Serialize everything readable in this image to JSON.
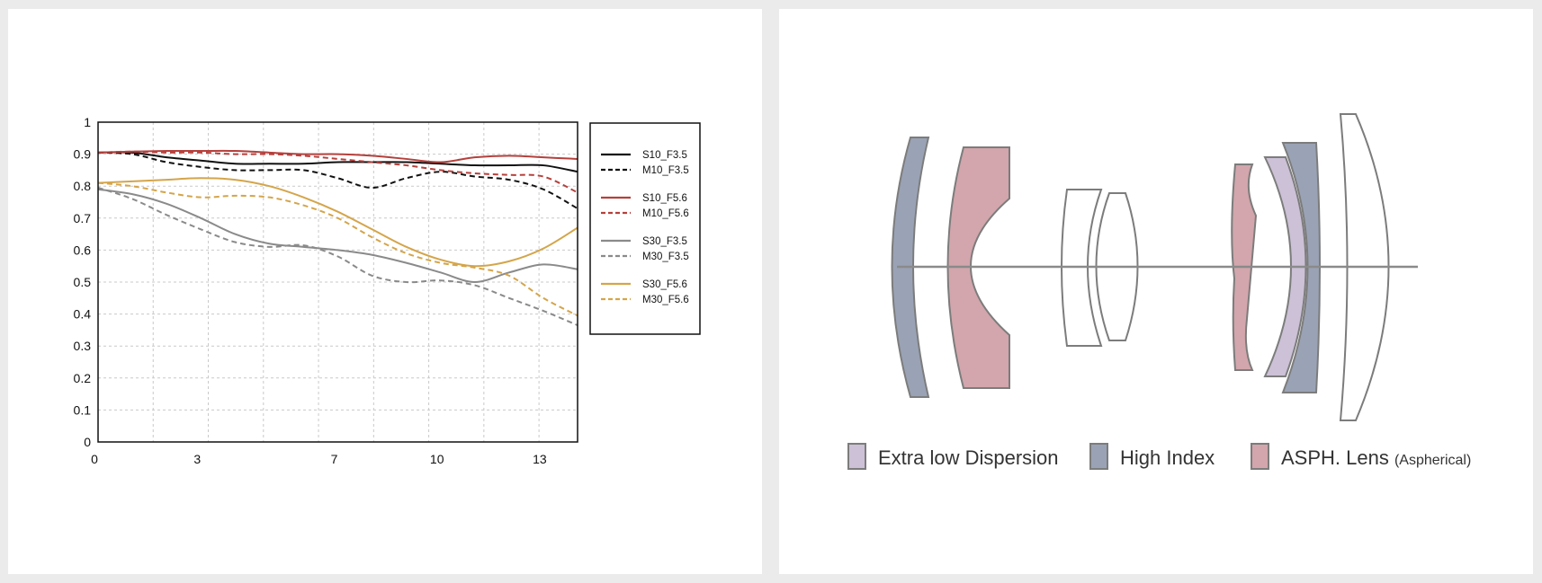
{
  "chart_data": {
    "type": "line",
    "x_ticks": [
      "0",
      "3",
      "7",
      "10",
      "13"
    ],
    "y_ticks": [
      "0",
      "0.1",
      "0.2",
      "0.3",
      "0.4",
      "0.5",
      "0.6",
      "0.7",
      "0.8",
      "0.9",
      "1"
    ],
    "xlim": [
      0,
      14
    ],
    "ylim": [
      0,
      1
    ],
    "grid": true,
    "legend_position": "right",
    "series": [
      {
        "name": "S10_F3.5",
        "color": "#111111",
        "dash": false,
        "x": [
          0,
          1,
          2,
          3,
          4,
          5,
          6,
          7,
          8,
          9,
          10,
          11,
          12,
          13,
          14
        ],
        "y": [
          0.905,
          0.905,
          0.89,
          0.88,
          0.87,
          0.87,
          0.87,
          0.875,
          0.875,
          0.875,
          0.87,
          0.865,
          0.865,
          0.865,
          0.845
        ]
      },
      {
        "name": "M10_F3.5",
        "color": "#111111",
        "dash": true,
        "x": [
          0,
          1,
          2,
          3,
          4,
          5,
          6,
          7,
          8,
          9,
          10,
          11,
          12,
          13,
          14
        ],
        "y": [
          0.905,
          0.9,
          0.875,
          0.86,
          0.85,
          0.85,
          0.85,
          0.825,
          0.795,
          0.825,
          0.845,
          0.83,
          0.82,
          0.79,
          0.73
        ]
      },
      {
        "name": "S10_F5.6",
        "color": "#b5403c",
        "dash": false,
        "x": [
          0,
          1,
          2,
          3,
          4,
          5,
          6,
          7,
          8,
          9,
          10,
          11,
          12,
          13,
          14
        ],
        "y": [
          0.905,
          0.908,
          0.91,
          0.91,
          0.91,
          0.905,
          0.9,
          0.9,
          0.895,
          0.885,
          0.875,
          0.89,
          0.895,
          0.89,
          0.885
        ]
      },
      {
        "name": "M10_F5.6",
        "color": "#b5403c",
        "dash": true,
        "x": [
          0,
          1,
          2,
          3,
          4,
          5,
          6,
          7,
          8,
          9,
          10,
          11,
          12,
          13,
          14
        ],
        "y": [
          0.905,
          0.908,
          0.905,
          0.905,
          0.9,
          0.9,
          0.895,
          0.885,
          0.875,
          0.865,
          0.85,
          0.84,
          0.835,
          0.83,
          0.78
        ]
      },
      {
        "name": "S30_F3.5",
        "color": "#8a8a8a",
        "dash": false,
        "x": [
          0,
          1,
          2,
          3,
          4,
          5,
          6,
          7,
          8,
          9,
          10,
          11,
          12,
          13,
          14
        ],
        "y": [
          0.79,
          0.775,
          0.745,
          0.7,
          0.65,
          0.62,
          0.61,
          0.6,
          0.585,
          0.56,
          0.53,
          0.5,
          0.53,
          0.555,
          0.54
        ]
      },
      {
        "name": "M30_F3.5",
        "color": "#8a8a8a",
        "dash": true,
        "x": [
          0,
          1,
          2,
          3,
          4,
          5,
          6,
          7,
          8,
          9,
          10,
          11,
          12,
          13,
          14
        ],
        "y": [
          0.795,
          0.76,
          0.71,
          0.665,
          0.625,
          0.61,
          0.615,
          0.58,
          0.52,
          0.5,
          0.505,
          0.49,
          0.45,
          0.41,
          0.365
        ]
      },
      {
        "name": "S30_F5.6",
        "color": "#d4a54a",
        "dash": false,
        "x": [
          0,
          1,
          2,
          3,
          4,
          5,
          6,
          7,
          8,
          9,
          10,
          11,
          12,
          13,
          14
        ],
        "y": [
          0.81,
          0.815,
          0.82,
          0.825,
          0.82,
          0.8,
          0.765,
          0.72,
          0.665,
          0.61,
          0.57,
          0.55,
          0.565,
          0.605,
          0.67
        ]
      },
      {
        "name": "M30_F5.6",
        "color": "#d4a54a",
        "dash": true,
        "x": [
          0,
          1,
          2,
          3,
          4,
          5,
          6,
          7,
          8,
          9,
          10,
          11,
          12,
          13,
          14
        ],
        "y": [
          0.81,
          0.8,
          0.78,
          0.765,
          0.77,
          0.765,
          0.74,
          0.7,
          0.64,
          0.59,
          0.56,
          0.545,
          0.52,
          0.45,
          0.395
        ]
      }
    ]
  },
  "lens_diagram": {
    "colors": {
      "ed": "#ccc1d6",
      "high_index": "#9aa3b5",
      "asph": "#d2a6ac",
      "plain": "#ffffff",
      "outline": "#7c7c7c"
    },
    "legend": [
      {
        "label": "Extra low Dispersion",
        "suffix": "",
        "color": "#ccc1d6"
      },
      {
        "label": "High Index",
        "suffix": "",
        "color": "#9aa3b5"
      },
      {
        "label": "ASPH. Lens ",
        "suffix": "(Aspherical)",
        "color": "#d2a6ac"
      }
    ]
  }
}
